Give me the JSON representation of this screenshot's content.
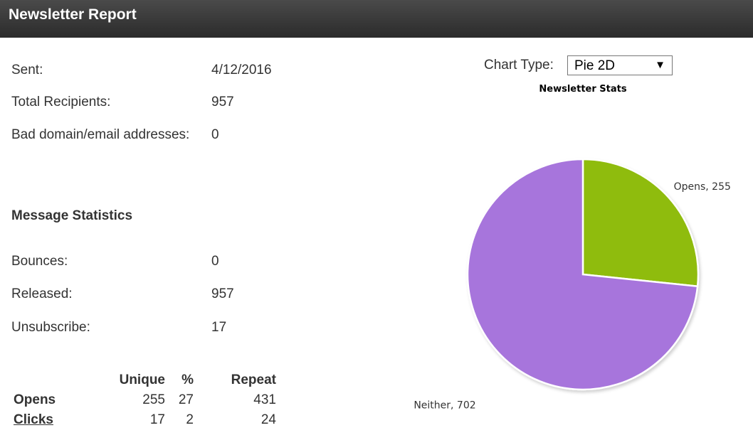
{
  "header": {
    "title": "Newsletter Report"
  },
  "summary": {
    "sent_label": "Sent:",
    "sent_value": "4/12/2016",
    "recipients_label": "Total Recipients:",
    "recipients_value": "957",
    "bad_label": "Bad domain/email addresses:",
    "bad_value": "0"
  },
  "message_stats": {
    "title": "Message Statistics",
    "bounces_label": "Bounces:",
    "bounces_value": "0",
    "released_label": "Released:",
    "released_value": "957",
    "unsubscribe_label": "Unsubscribe:",
    "unsubscribe_value": "17"
  },
  "stats_table": {
    "headers": [
      "Unique",
      "%",
      "Repeat"
    ],
    "rows": [
      {
        "name": "Opens",
        "unique": "255",
        "pct": "27",
        "repeat": "431"
      },
      {
        "name": "Clicks",
        "unique": "17",
        "pct": "2",
        "repeat": "24"
      }
    ]
  },
  "chart_controls": {
    "label": "Chart Type:",
    "selected": "Pie 2D",
    "arrow_icon": "triangle-down-icon"
  },
  "chart_data": {
    "type": "pie",
    "title": "Newsletter Stats",
    "slices": [
      {
        "label": "Opens",
        "value": 255,
        "color": "#8fbc0c",
        "data_label": "Opens, 255"
      },
      {
        "label": "Neither",
        "value": 702,
        "color": "#a774dc",
        "data_label": "Neither, 702"
      }
    ]
  }
}
